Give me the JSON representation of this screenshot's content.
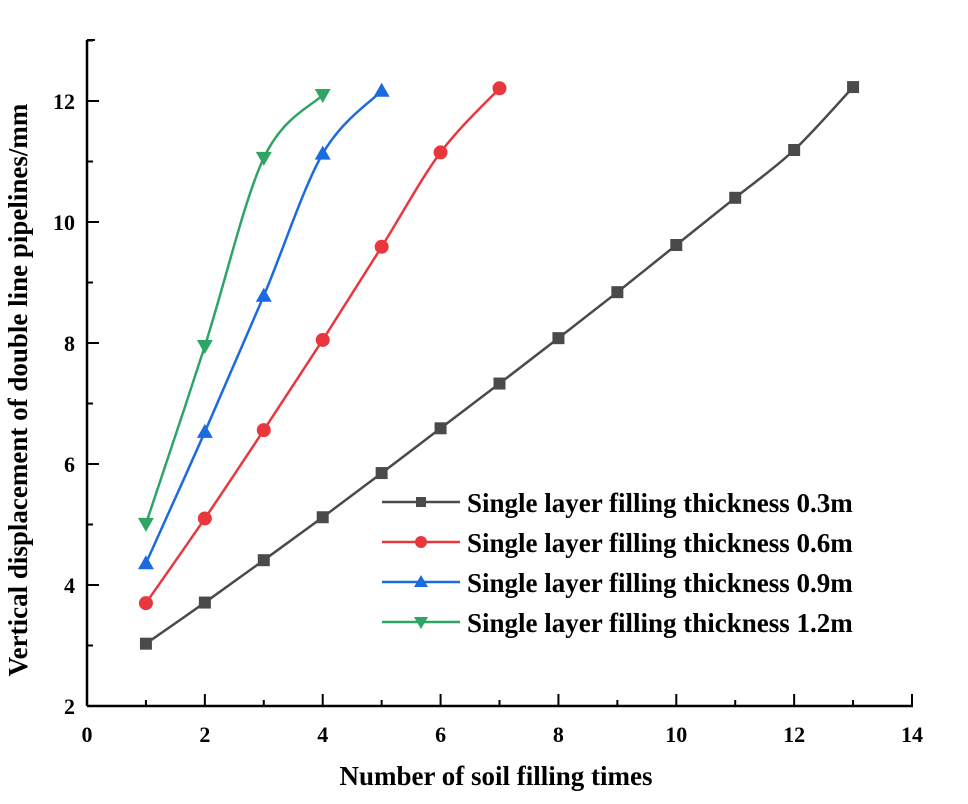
{
  "chart_data": {
    "type": "line",
    "title": "",
    "xlabel": "Number of soil filling times",
    "ylabel": "Vertical displacement of double line pipelines/mm",
    "xlim": [
      0,
      14
    ],
    "ylim": [
      2,
      13
    ],
    "xticks": [
      0,
      2,
      4,
      6,
      8,
      10,
      12,
      14
    ],
    "yticks": [
      2,
      4,
      6,
      8,
      10,
      12
    ],
    "grid": false,
    "legend_position": "lower right",
    "series": [
      {
        "name": "Single layer filling thickness 0.3m",
        "color": "#4a4a4a",
        "marker": "square",
        "x": [
          1,
          2,
          3,
          4,
          5,
          6,
          7,
          8,
          9,
          10,
          11,
          12,
          13
        ],
        "values": [
          3.03,
          3.71,
          4.41,
          5.12,
          5.85,
          6.59,
          7.33,
          8.08,
          8.84,
          9.62,
          10.4,
          11.19,
          12.23
        ]
      },
      {
        "name": "Single layer filling thickness 0.6m",
        "color": "#e8383d",
        "marker": "circle",
        "x": [
          1,
          2,
          3,
          4,
          5,
          6,
          7
        ],
        "values": [
          3.7,
          5.1,
          6.56,
          8.05,
          9.59,
          11.15,
          12.21
        ]
      },
      {
        "name": "Single layer filling thickness 0.9m",
        "color": "#1a6ae0",
        "marker": "triangle-up",
        "x": [
          1,
          2,
          3,
          4,
          5
        ],
        "values": [
          4.36,
          6.53,
          8.78,
          11.13,
          12.17
        ]
      },
      {
        "name": "Single layer filling thickness 1.2m",
        "color": "#2ea565",
        "marker": "triangle-down",
        "x": [
          1,
          2,
          3,
          4
        ],
        "values": [
          5.01,
          7.95,
          11.06,
          12.1
        ]
      }
    ]
  }
}
